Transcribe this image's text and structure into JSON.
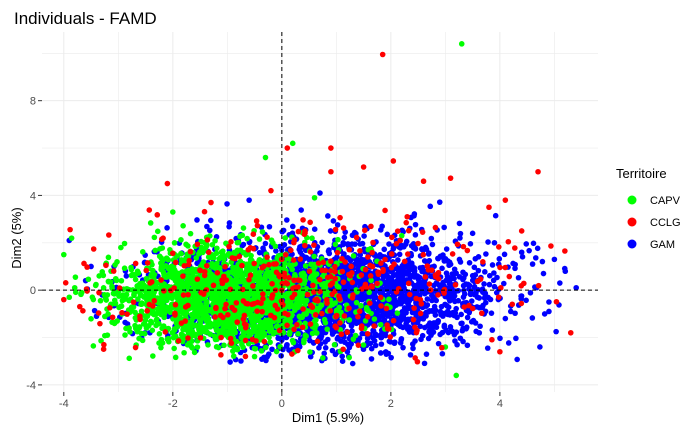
{
  "chart_data": {
    "type": "scatter",
    "title": "Individuals - FAMD",
    "xlabel": "Dim1 (5.9%)",
    "ylabel": "Dim2 (5%)",
    "xlim": [
      -4.4,
      5.8
    ],
    "ylim": [
      -4.3,
      10.9
    ],
    "x_ticks": [
      -4,
      -2,
      0,
      2,
      4
    ],
    "y_ticks": [
      -4,
      0,
      4,
      8
    ],
    "x_tick_labels": [
      "-4",
      "-2",
      "0",
      "2",
      "4"
    ],
    "y_tick_labels": [
      "-4",
      "0",
      "4",
      "8"
    ],
    "grid": true,
    "reference_lines": {
      "x": 0,
      "y": 0,
      "style": "dashed"
    },
    "legend": {
      "title": "Territoire",
      "placement": "right",
      "entries": [
        {
          "name": "CAPV",
          "color": "#00ff00"
        },
        {
          "name": "CCLG",
          "color": "#ff0000"
        },
        {
          "name": "GAM",
          "color": "#0000ff"
        }
      ]
    },
    "series": [
      {
        "name": "GAM",
        "color": "#0000ff",
        "cloud": {
          "n": 2600,
          "x_center": 0.9,
          "x_sd": 1.5,
          "y_center": -0.2,
          "y_sd": 1.15,
          "x_range": [
            -3.6,
            5.4
          ],
          "y_range": [
            -3.1,
            4.2
          ]
        },
        "points": [
          [
            4.8,
            0.7
          ],
          [
            5.1,
            0.3
          ],
          [
            4.6,
            1.1
          ],
          [
            4.9,
            -0.5
          ],
          [
            5.4,
            0.1
          ],
          [
            4.4,
            1.6
          ],
          [
            5.0,
            1.3
          ],
          [
            3.5,
            2.4
          ],
          [
            4.1,
            -1.2
          ],
          [
            -3.5,
            1.0
          ],
          [
            -3.6,
            0.4
          ],
          [
            -3.9,
            2.1
          ],
          [
            0.7,
            4.1
          ],
          [
            -0.6,
            3.8
          ],
          [
            4.2,
            -0.9
          ],
          [
            4.9,
            -0.9
          ],
          [
            5.2,
            0.8
          ],
          [
            3.9,
            2.0
          ],
          [
            -3.4,
            -1.1
          ],
          [
            1.3,
            -3.1
          ]
        ]
      },
      {
        "name": "CAPV",
        "color": "#00ff00",
        "cloud": {
          "n": 1900,
          "x_center": -1.0,
          "x_sd": 1.05,
          "y_center": -0.3,
          "y_sd": 1.0,
          "x_range": [
            -3.9,
            2.6
          ],
          "y_range": [
            -2.9,
            3.6
          ]
        },
        "points": [
          [
            3.3,
            10.4
          ],
          [
            0.2,
            6.2
          ],
          [
            -0.3,
            5.6
          ],
          [
            3.2,
            -3.6
          ],
          [
            -3.8,
            0.1
          ],
          [
            -3.9,
            -0.3
          ],
          [
            -2.0,
            3.3
          ],
          [
            -4.0,
            1.5
          ],
          [
            0.6,
            3.9
          ],
          [
            3.0,
            -2.4
          ],
          [
            2.2,
            2.3
          ],
          [
            -3.2,
            -1.9
          ]
        ]
      },
      {
        "name": "CCLG",
        "color": "#ff0000",
        "cloud": {
          "n": 380,
          "x_center": 0.3,
          "x_sd": 2.0,
          "y_center": 0.1,
          "y_sd": 1.4,
          "x_range": [
            -4.0,
            5.2
          ],
          "y_range": [
            -3.2,
            5.5
          ]
        },
        "points": [
          [
            1.85,
            9.95
          ],
          [
            -2.1,
            4.5
          ],
          [
            0.1,
            6.0
          ],
          [
            0.9,
            6.0
          ],
          [
            0.9,
            5.0
          ],
          [
            5.3,
            -1.8
          ],
          [
            4.7,
            5.0
          ],
          [
            4.1,
            3.8
          ],
          [
            -4.0,
            -0.4
          ],
          [
            3.8,
            3.5
          ],
          [
            2.3,
            3.1
          ],
          [
            4.4,
            2.5
          ],
          [
            -1.3,
            3.7
          ],
          [
            -0.2,
            4.2
          ],
          [
            1.5,
            5.2
          ],
          [
            4.0,
            -2.6
          ],
          [
            2.6,
            4.6
          ],
          [
            0.0,
            0.0
          ]
        ]
      }
    ]
  }
}
